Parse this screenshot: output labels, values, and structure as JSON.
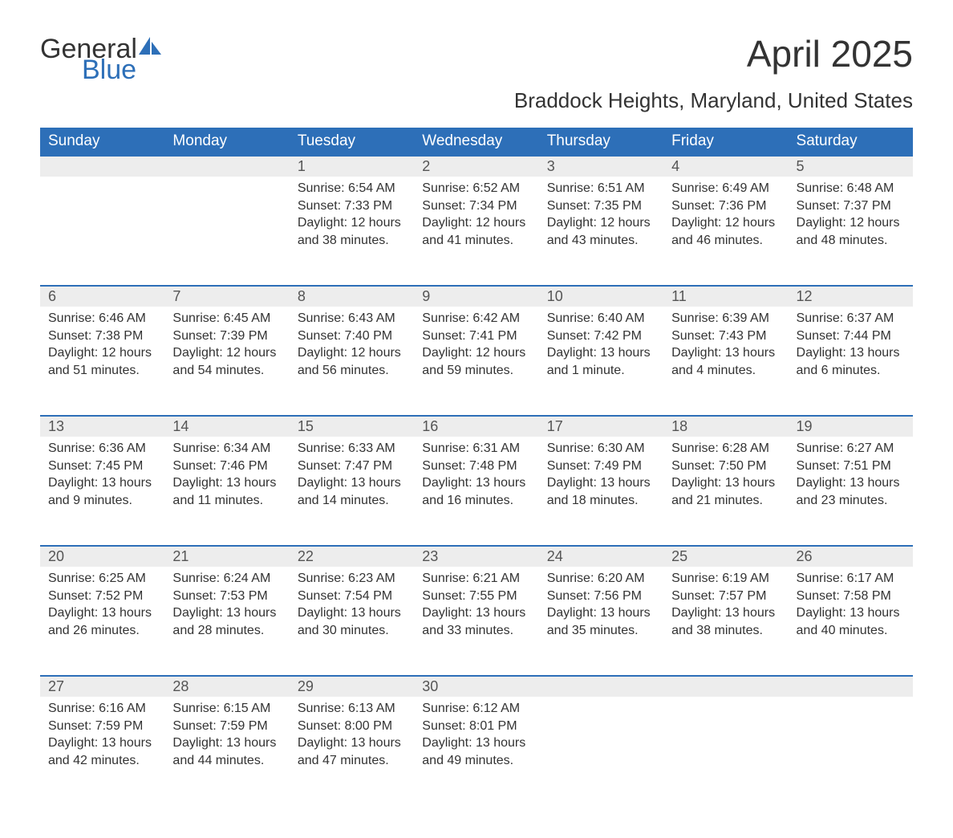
{
  "brand": {
    "word1": "General",
    "word2": "Blue",
    "accent_color": "#2d6fb8"
  },
  "title": "April 2025",
  "subtitle": "Braddock Heights, Maryland, United States",
  "colors": {
    "header_bg": "#2d6fb8",
    "header_text": "#ffffff",
    "daynum_bg": "#ededed",
    "row_border": "#2d6fb8",
    "body_text": "#333333",
    "daynum_text": "#555555",
    "page_bg": "#ffffff"
  },
  "fonts": {
    "title_size_pt": 34,
    "subtitle_size_pt": 20,
    "header_size_pt": 14,
    "body_size_pt": 12
  },
  "layout": {
    "type": "table",
    "columns": 7,
    "rows": 5
  },
  "weekdays": [
    "Sunday",
    "Monday",
    "Tuesday",
    "Wednesday",
    "Thursday",
    "Friday",
    "Saturday"
  ],
  "weeks": [
    [
      null,
      null,
      {
        "n": "1",
        "sunrise": "Sunrise: 6:54 AM",
        "sunset": "Sunset: 7:33 PM",
        "daylight": "Daylight: 12 hours and 38 minutes."
      },
      {
        "n": "2",
        "sunrise": "Sunrise: 6:52 AM",
        "sunset": "Sunset: 7:34 PM",
        "daylight": "Daylight: 12 hours and 41 minutes."
      },
      {
        "n": "3",
        "sunrise": "Sunrise: 6:51 AM",
        "sunset": "Sunset: 7:35 PM",
        "daylight": "Daylight: 12 hours and 43 minutes."
      },
      {
        "n": "4",
        "sunrise": "Sunrise: 6:49 AM",
        "sunset": "Sunset: 7:36 PM",
        "daylight": "Daylight: 12 hours and 46 minutes."
      },
      {
        "n": "5",
        "sunrise": "Sunrise: 6:48 AM",
        "sunset": "Sunset: 7:37 PM",
        "daylight": "Daylight: 12 hours and 48 minutes."
      }
    ],
    [
      {
        "n": "6",
        "sunrise": "Sunrise: 6:46 AM",
        "sunset": "Sunset: 7:38 PM",
        "daylight": "Daylight: 12 hours and 51 minutes."
      },
      {
        "n": "7",
        "sunrise": "Sunrise: 6:45 AM",
        "sunset": "Sunset: 7:39 PM",
        "daylight": "Daylight: 12 hours and 54 minutes."
      },
      {
        "n": "8",
        "sunrise": "Sunrise: 6:43 AM",
        "sunset": "Sunset: 7:40 PM",
        "daylight": "Daylight: 12 hours and 56 minutes."
      },
      {
        "n": "9",
        "sunrise": "Sunrise: 6:42 AM",
        "sunset": "Sunset: 7:41 PM",
        "daylight": "Daylight: 12 hours and 59 minutes."
      },
      {
        "n": "10",
        "sunrise": "Sunrise: 6:40 AM",
        "sunset": "Sunset: 7:42 PM",
        "daylight": "Daylight: 13 hours and 1 minute."
      },
      {
        "n": "11",
        "sunrise": "Sunrise: 6:39 AM",
        "sunset": "Sunset: 7:43 PM",
        "daylight": "Daylight: 13 hours and 4 minutes."
      },
      {
        "n": "12",
        "sunrise": "Sunrise: 6:37 AM",
        "sunset": "Sunset: 7:44 PM",
        "daylight": "Daylight: 13 hours and 6 minutes."
      }
    ],
    [
      {
        "n": "13",
        "sunrise": "Sunrise: 6:36 AM",
        "sunset": "Sunset: 7:45 PM",
        "daylight": "Daylight: 13 hours and 9 minutes."
      },
      {
        "n": "14",
        "sunrise": "Sunrise: 6:34 AM",
        "sunset": "Sunset: 7:46 PM",
        "daylight": "Daylight: 13 hours and 11 minutes."
      },
      {
        "n": "15",
        "sunrise": "Sunrise: 6:33 AM",
        "sunset": "Sunset: 7:47 PM",
        "daylight": "Daylight: 13 hours and 14 minutes."
      },
      {
        "n": "16",
        "sunrise": "Sunrise: 6:31 AM",
        "sunset": "Sunset: 7:48 PM",
        "daylight": "Daylight: 13 hours and 16 minutes."
      },
      {
        "n": "17",
        "sunrise": "Sunrise: 6:30 AM",
        "sunset": "Sunset: 7:49 PM",
        "daylight": "Daylight: 13 hours and 18 minutes."
      },
      {
        "n": "18",
        "sunrise": "Sunrise: 6:28 AM",
        "sunset": "Sunset: 7:50 PM",
        "daylight": "Daylight: 13 hours and 21 minutes."
      },
      {
        "n": "19",
        "sunrise": "Sunrise: 6:27 AM",
        "sunset": "Sunset: 7:51 PM",
        "daylight": "Daylight: 13 hours and 23 minutes."
      }
    ],
    [
      {
        "n": "20",
        "sunrise": "Sunrise: 6:25 AM",
        "sunset": "Sunset: 7:52 PM",
        "daylight": "Daylight: 13 hours and 26 minutes."
      },
      {
        "n": "21",
        "sunrise": "Sunrise: 6:24 AM",
        "sunset": "Sunset: 7:53 PM",
        "daylight": "Daylight: 13 hours and 28 minutes."
      },
      {
        "n": "22",
        "sunrise": "Sunrise: 6:23 AM",
        "sunset": "Sunset: 7:54 PM",
        "daylight": "Daylight: 13 hours and 30 minutes."
      },
      {
        "n": "23",
        "sunrise": "Sunrise: 6:21 AM",
        "sunset": "Sunset: 7:55 PM",
        "daylight": "Daylight: 13 hours and 33 minutes."
      },
      {
        "n": "24",
        "sunrise": "Sunrise: 6:20 AM",
        "sunset": "Sunset: 7:56 PM",
        "daylight": "Daylight: 13 hours and 35 minutes."
      },
      {
        "n": "25",
        "sunrise": "Sunrise: 6:19 AM",
        "sunset": "Sunset: 7:57 PM",
        "daylight": "Daylight: 13 hours and 38 minutes."
      },
      {
        "n": "26",
        "sunrise": "Sunrise: 6:17 AM",
        "sunset": "Sunset: 7:58 PM",
        "daylight": "Daylight: 13 hours and 40 minutes."
      }
    ],
    [
      {
        "n": "27",
        "sunrise": "Sunrise: 6:16 AM",
        "sunset": "Sunset: 7:59 PM",
        "daylight": "Daylight: 13 hours and 42 minutes."
      },
      {
        "n": "28",
        "sunrise": "Sunrise: 6:15 AM",
        "sunset": "Sunset: 7:59 PM",
        "daylight": "Daylight: 13 hours and 44 minutes."
      },
      {
        "n": "29",
        "sunrise": "Sunrise: 6:13 AM",
        "sunset": "Sunset: 8:00 PM",
        "daylight": "Daylight: 13 hours and 47 minutes."
      },
      {
        "n": "30",
        "sunrise": "Sunrise: 6:12 AM",
        "sunset": "Sunset: 8:01 PM",
        "daylight": "Daylight: 13 hours and 49 minutes."
      },
      null,
      null,
      null
    ]
  ]
}
